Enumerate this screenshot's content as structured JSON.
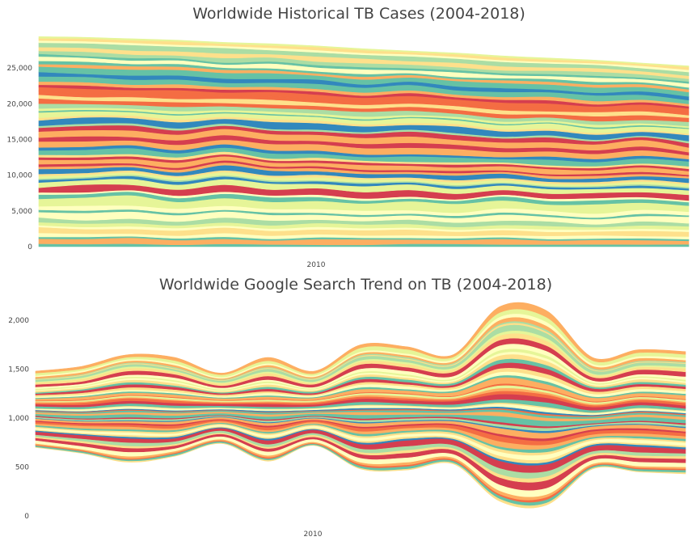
{
  "charts": [
    {
      "type": "area",
      "stacked": true,
      "title": "Worldwide Historical TB Cases (2004-2018)",
      "x": [
        2004,
        2005,
        2006,
        2007,
        2008,
        2009,
        2010,
        2011,
        2012,
        2013,
        2014,
        2015,
        2016,
        2017,
        2018
      ],
      "x_tick_labels": [
        "2010"
      ],
      "y_tick_labels": [
        "0",
        "5,000",
        "10,000",
        "15,000",
        "20,000",
        "25,000"
      ],
      "ylim": [
        0,
        30000
      ],
      "totals": [
        29400,
        29300,
        29100,
        28900,
        28600,
        28400,
        28100,
        27700,
        27400,
        27100,
        26700,
        26400,
        26100,
        25700,
        25300
      ],
      "baseline": [
        0,
        0,
        0,
        0,
        0,
        0,
        0,
        0,
        0,
        0,
        0,
        0,
        0,
        0,
        0
      ],
      "series_count": 60,
      "palette": [
        "#d53e4f",
        "#f46d43",
        "#fdae61",
        "#fee08b",
        "#ffffbf",
        "#e6f598",
        "#abdda4",
        "#66c2a5",
        "#3288bd"
      ],
      "grid": false,
      "legend": false
    },
    {
      "type": "area",
      "stacked": true,
      "title": "Worldwide Google Search Trend on TB (2004-2018)",
      "x": [
        2004,
        2005,
        2006,
        2007,
        2008,
        2009,
        2010,
        2011,
        2012,
        2013,
        2014,
        2015,
        2016,
        2017,
        2018
      ],
      "x_tick_labels": [
        "2010"
      ],
      "y_tick_labels": [
        "0",
        "500",
        "1,000",
        "1,500",
        "2,000"
      ],
      "ylim": [
        0,
        2150
      ],
      "totals": [
        1480,
        1530,
        1650,
        1620,
        1460,
        1620,
        1480,
        1750,
        1730,
        1650,
        2140,
        2100,
        1620,
        1700,
        1680
      ],
      "baseline": [
        700,
        640,
        550,
        610,
        740,
        560,
        720,
        480,
        470,
        530,
        150,
        110,
        480,
        450,
        430
      ],
      "series_count": 60,
      "palette": [
        "#d53e4f",
        "#f46d43",
        "#fdae61",
        "#fee08b",
        "#ffffbf",
        "#e6f598",
        "#abdda4",
        "#66c2a5",
        "#3288bd"
      ],
      "grid": false,
      "legend": false
    }
  ]
}
